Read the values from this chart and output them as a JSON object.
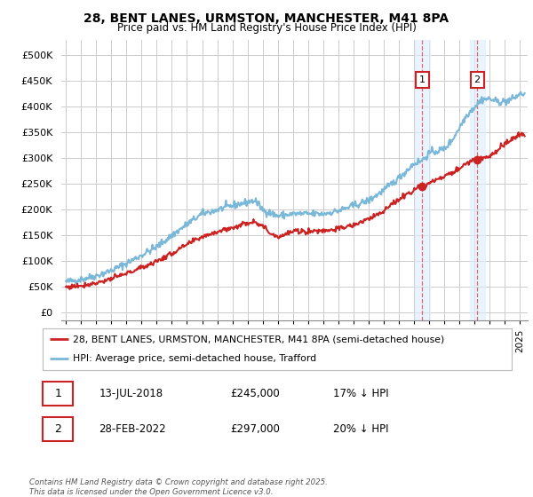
{
  "title1": "28, BENT LANES, URMSTON, MANCHESTER, M41 8PA",
  "title2": "Price paid vs. HM Land Registry's House Price Index (HPI)",
  "yticks": [
    0,
    50000,
    100000,
    150000,
    200000,
    250000,
    300000,
    350000,
    400000,
    450000,
    500000
  ],
  "ytick_labels": [
    "£0",
    "£50K",
    "£100K",
    "£150K",
    "£200K",
    "£250K",
    "£300K",
    "£350K",
    "£400K",
    "£450K",
    "£500K"
  ],
  "xlim_start": 1994.7,
  "xlim_end": 2025.5,
  "ylim_min": -15000,
  "ylim_max": 530000,
  "hpi_color": "#7ab8d9",
  "price_color": "#cc2222",
  "marker1_x": 2018.53,
  "marker2_x": 2022.16,
  "marker1_y": 245000,
  "marker2_y": 297000,
  "annotation1_date": "13-JUL-2018",
  "annotation1_price": "£245,000",
  "annotation1_pct": "17% ↓ HPI",
  "annotation2_date": "28-FEB-2022",
  "annotation2_price": "£297,000",
  "annotation2_pct": "20% ↓ HPI",
  "legend_label1": "28, BENT LANES, URMSTON, MANCHESTER, M41 8PA (semi-detached house)",
  "legend_label2": "HPI: Average price, semi-detached house, Trafford",
  "footer": "Contains HM Land Registry data © Crown copyright and database right 2025.\nThis data is licensed under the Open Government Licence v3.0.",
  "background_color": "#ffffff",
  "grid_color": "#cccccc",
  "highlight_color": "#ddeeff",
  "vline_color": "#dd4444"
}
